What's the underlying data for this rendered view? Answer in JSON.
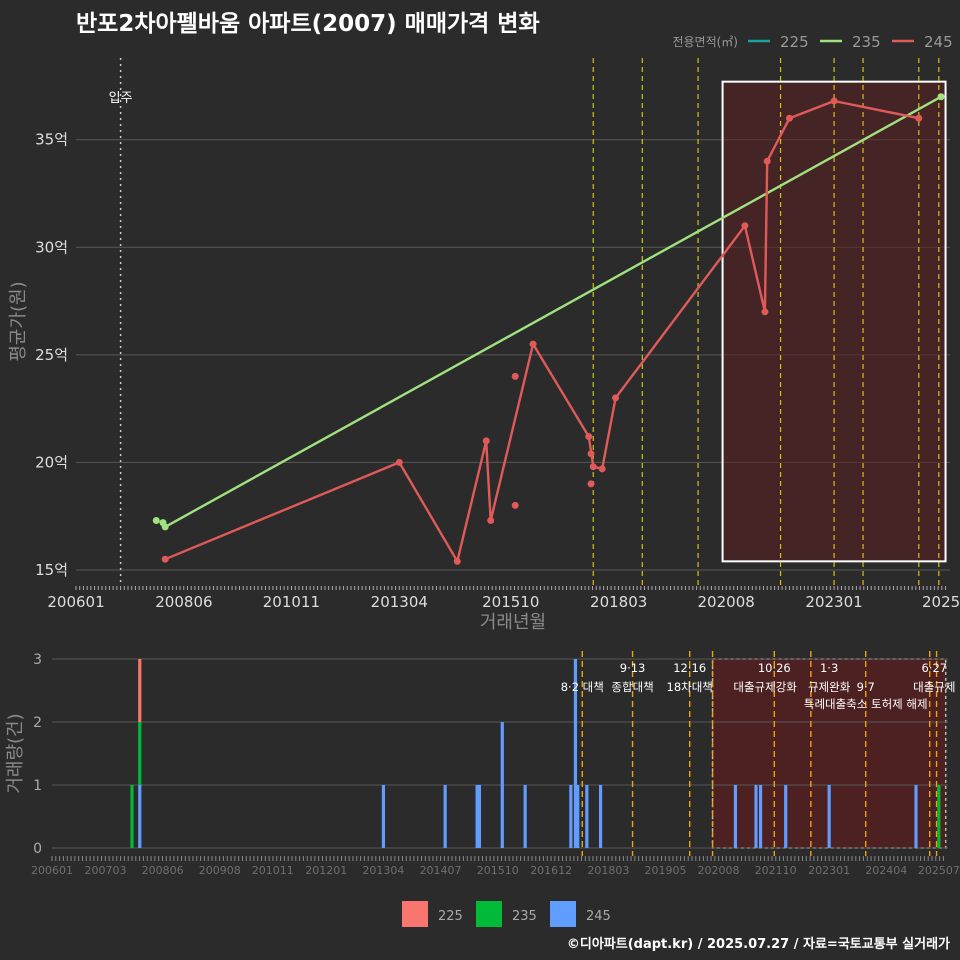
{
  "title": "반포2차아펠바움 아파트(2007) 매매가격 변화",
  "credit": "©디아파트(dapt.kr) / 2025.07.27 / 자료=국토교통부 실거래가",
  "colors": {
    "background": "#2b2b2b",
    "grid": "#575757",
    "s225": "#1aa39a",
    "s235": "#9fe27f",
    "s245": "#e05a5a",
    "bar225": "#f8766d",
    "bar235": "#00ba38",
    "bar245": "#619cff",
    "policy_line": "#d6c11a",
    "policy_line_bottom": "#f0a30a",
    "highlight": "#5a1f1f"
  },
  "chart_data": [
    {
      "type": "line",
      "title": "반포2차아펠바움 아파트(2007) 매매가격 변화",
      "xlabel": "거래년월",
      "ylabel": "평균가(원)",
      "x_unit": "year (decimal)",
      "xlim": [
        2006.0,
        2025.6
      ],
      "ylim": [
        14.3,
        38.8
      ],
      "x_ticks": [
        {
          "x": 2006.0,
          "label": "200601"
        },
        {
          "x": 2008.42,
          "label": "200806"
        },
        {
          "x": 2010.83,
          "label": "201011"
        },
        {
          "x": 2013.25,
          "label": "201304"
        },
        {
          "x": 2015.75,
          "label": "201510"
        },
        {
          "x": 2018.17,
          "label": "201803"
        },
        {
          "x": 2020.58,
          "label": "202008"
        },
        {
          "x": 2023.0,
          "label": "202301"
        },
        {
          "x": 2025.4,
          "label": "2025"
        }
      ],
      "y_ticks": [
        {
          "y": 15,
          "label": "15억"
        },
        {
          "y": 20,
          "label": "20억"
        },
        {
          "y": 25,
          "label": "25억"
        },
        {
          "y": 30,
          "label": "30억"
        },
        {
          "y": 35,
          "label": "35억"
        }
      ],
      "legend_title": "전용면적(㎡)",
      "legend": [
        {
          "name": "225",
          "color": "#1aa39a"
        },
        {
          "name": "235",
          "color": "#9fe27f"
        },
        {
          "name": "245",
          "color": "#e05a5a"
        }
      ],
      "annotations": [
        {
          "x": 2007.0,
          "label": "입주"
        }
      ],
      "policy_lines": [
        2017.6,
        2018.7,
        2019.95,
        2021.8,
        2023.0,
        2023.65,
        2024.9,
        2025.35
      ],
      "highlight_range": {
        "x": [
          2020.5,
          2025.5
        ],
        "y": [
          15.4,
          37.7
        ]
      },
      "series": [
        {
          "name": "235",
          "color": "#9fe27f",
          "line": [
            [
              2008.0,
              17.0
            ],
            [
              2025.4,
              37.0
            ]
          ],
          "points": [
            [
              2007.8,
              17.3
            ],
            [
              2007.95,
              17.2
            ],
            [
              2008.0,
              17.0
            ],
            [
              2025.4,
              37.0
            ]
          ]
        },
        {
          "name": "245",
          "color": "#e05a5a",
          "line": [
            [
              2008.0,
              15.5
            ],
            [
              2013.25,
              20.0
            ],
            [
              2014.55,
              15.4
            ],
            [
              2015.2,
              21.0
            ],
            [
              2015.3,
              17.3
            ],
            [
              2016.25,
              25.5
            ],
            [
              2017.5,
              21.2
            ],
            [
              2017.6,
              19.8
            ],
            [
              2017.8,
              19.7
            ],
            [
              2018.1,
              23.0
            ],
            [
              2021.0,
              31.0
            ],
            [
              2021.45,
              27.0
            ],
            [
              2021.5,
              34.0
            ],
            [
              2022.0,
              36.0
            ],
            [
              2023.0,
              36.8
            ],
            [
              2024.9,
              36.0
            ]
          ],
          "points": [
            [
              2008.0,
              15.5
            ],
            [
              2013.25,
              20.0
            ],
            [
              2014.55,
              15.4
            ],
            [
              2015.2,
              21.0
            ],
            [
              2015.3,
              17.3
            ],
            [
              2015.85,
              24.0
            ],
            [
              2015.85,
              18.0
            ],
            [
              2016.25,
              25.5
            ],
            [
              2017.5,
              21.2
            ],
            [
              2017.55,
              20.4
            ],
            [
              2017.55,
              19.0
            ],
            [
              2017.6,
              19.8
            ],
            [
              2017.8,
              19.7
            ],
            [
              2018.1,
              23.0
            ],
            [
              2021.0,
              31.0
            ],
            [
              2021.45,
              27.0
            ],
            [
              2021.5,
              34.0
            ],
            [
              2022.0,
              36.0
            ],
            [
              2023.0,
              36.8
            ],
            [
              2024.9,
              36.0
            ]
          ]
        }
      ]
    },
    {
      "type": "bar",
      "xlabel": "",
      "ylabel": "거래량(건)",
      "xlim": [
        2006.0,
        2025.6
      ],
      "ylim": [
        0,
        3
      ],
      "y_ticks": [
        0,
        1,
        2,
        3
      ],
      "x_ticks": [
        {
          "x": 2006.0,
          "label": "200601"
        },
        {
          "x": 2007.17,
          "label": "200703"
        },
        {
          "x": 2008.42,
          "label": "200806"
        },
        {
          "x": 2009.67,
          "label": "200908"
        },
        {
          "x": 2010.83,
          "label": "201011"
        },
        {
          "x": 2012.0,
          "label": "201201"
        },
        {
          "x": 2013.25,
          "label": "201304"
        },
        {
          "x": 2014.5,
          "label": "201407"
        },
        {
          "x": 2015.75,
          "label": "201510"
        },
        {
          "x": 2016.92,
          "label": "201612"
        },
        {
          "x": 2018.17,
          "label": "201803"
        },
        {
          "x": 2019.42,
          "label": "201905"
        },
        {
          "x": 2020.58,
          "label": "202008"
        },
        {
          "x": 2021.83,
          "label": "202110"
        },
        {
          "x": 2023.0,
          "label": "202301"
        },
        {
          "x": 2024.25,
          "label": "202404"
        },
        {
          "x": 2025.4,
          "label": "202507"
        }
      ],
      "legend": [
        {
          "name": "225",
          "color": "#f8766d"
        },
        {
          "name": "235",
          "color": "#00ba38"
        },
        {
          "name": "245",
          "color": "#619cff"
        }
      ],
      "policy_lines": [
        2017.6,
        2018.7,
        2019.95,
        2020.45,
        2021.8,
        2022.6,
        2023.8,
        2025.2,
        2025.35
      ],
      "policy_labels": [
        {
          "x": 2017.6,
          "row": 1,
          "text": "8·2 대책"
        },
        {
          "x": 2018.7,
          "row": 0,
          "text": "9·13"
        },
        {
          "x": 2018.7,
          "row": 1,
          "text": "종합대책"
        },
        {
          "x": 2019.95,
          "row": 0,
          "text": "12·16"
        },
        {
          "x": 2019.95,
          "row": 1,
          "text": "18차대책"
        },
        {
          "x": 2021.8,
          "row": 0,
          "text": "10·26"
        },
        {
          "x": 2021.6,
          "row": 1,
          "text": "대출규제강화"
        },
        {
          "x": 2023.0,
          "row": 0,
          "text": "1·3"
        },
        {
          "x": 2023.0,
          "row": 1,
          "text": "규제완화"
        },
        {
          "x": 2023.8,
          "row": 1,
          "text": "9·7"
        },
        {
          "x": 2023.8,
          "row": 2,
          "text": "특례대출축소 토허제 해제"
        },
        {
          "x": 2025.3,
          "row": 0,
          "text": "6·27"
        },
        {
          "x": 2025.3,
          "row": 1,
          "text": "대출규제"
        }
      ],
      "highlight_range": {
        "x": [
          2020.45,
          2025.55
        ],
        "y": [
          0,
          3
        ]
      },
      "bars": [
        {
          "x": 2007.75,
          "values": [
            0,
            1,
            0
          ]
        },
        {
          "x": 2007.92,
          "values": [
            1,
            1,
            1
          ]
        },
        {
          "x": 2013.25,
          "values": [
            0,
            0,
            1
          ]
        },
        {
          "x": 2014.6,
          "values": [
            0,
            0,
            1
          ]
        },
        {
          "x": 2015.3,
          "values": [
            0,
            0,
            1
          ]
        },
        {
          "x": 2015.35,
          "values": [
            0,
            0,
            1
          ]
        },
        {
          "x": 2015.85,
          "values": [
            0,
            0,
            2
          ]
        },
        {
          "x": 2016.35,
          "values": [
            0,
            0,
            1
          ]
        },
        {
          "x": 2017.35,
          "values": [
            0,
            0,
            1
          ]
        },
        {
          "x": 2017.45,
          "values": [
            0,
            0,
            3
          ]
        },
        {
          "x": 2017.5,
          "values": [
            0,
            0,
            1
          ]
        },
        {
          "x": 2017.7,
          "values": [
            0,
            0,
            1
          ]
        },
        {
          "x": 2018.0,
          "values": [
            0,
            0,
            1
          ]
        },
        {
          "x": 2020.95,
          "values": [
            0,
            0,
            1
          ]
        },
        {
          "x": 2021.4,
          "values": [
            0,
            0,
            1
          ]
        },
        {
          "x": 2021.5,
          "values": [
            0,
            0,
            1
          ]
        },
        {
          "x": 2022.05,
          "values": [
            0,
            0,
            1
          ]
        },
        {
          "x": 2023.0,
          "values": [
            0,
            0,
            1
          ]
        },
        {
          "x": 2024.9,
          "values": [
            0,
            0,
            1
          ]
        },
        {
          "x": 2025.4,
          "values": [
            0,
            1,
            0
          ]
        }
      ]
    }
  ]
}
